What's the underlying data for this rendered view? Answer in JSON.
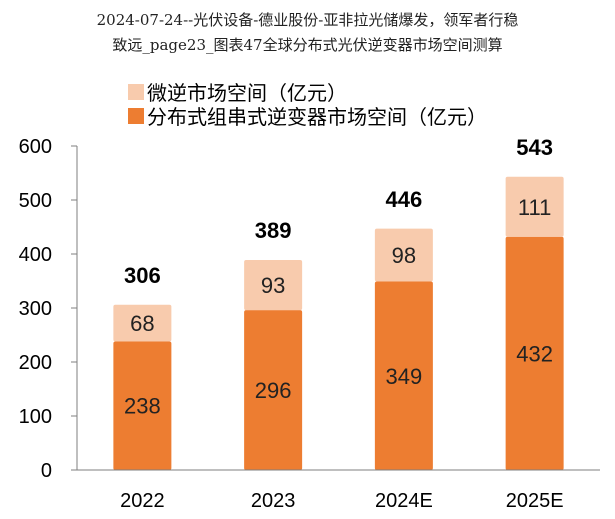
{
  "header": {
    "line1": "2024-07-24--光伏设备-德业股份-亚非拉光储爆发，领军者行稳",
    "line2": "致远_page23_图表47全球分布式光伏逆变器市场空间测算"
  },
  "chart_data": {
    "type": "bar",
    "stacked": true,
    "categories": [
      "2022",
      "2023",
      "2024E",
      "2025E"
    ],
    "series": [
      {
        "name": "分布式组串式逆变器市场空间（亿元）",
        "values": [
          238,
          296,
          349,
          432
        ],
        "color": "#ED7D31"
      },
      {
        "name": "微逆市场空间（亿元）",
        "values": [
          68,
          93,
          98,
          111
        ],
        "color": "#F8CBAD"
      }
    ],
    "totals": [
      306,
      389,
      446,
      543
    ],
    "legend": [
      {
        "name": "微逆市场空间（亿元）",
        "color": "#F8CBAD"
      },
      {
        "name": "分布式组串式逆变器市场空间（亿元）",
        "color": "#ED7D31"
      }
    ],
    "ylim": [
      0,
      600
    ],
    "yticks": [
      0,
      100,
      200,
      300,
      400,
      500,
      600
    ],
    "grid": false,
    "legend_position": "top-left"
  }
}
